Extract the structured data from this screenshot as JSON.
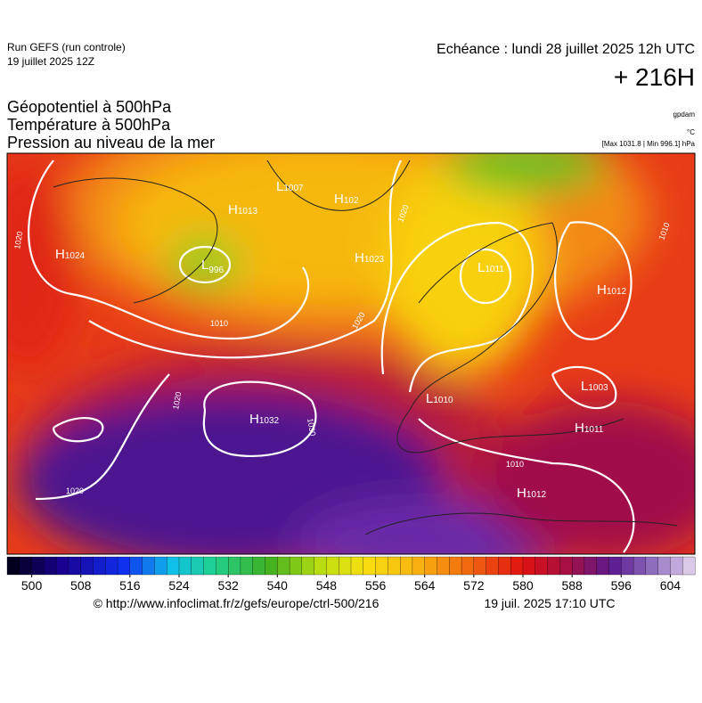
{
  "header": {
    "run": "Run GEFS (run controle)",
    "date": "19 juillet 2025 12Z",
    "echeance": "Echéance : lundi 28 juillet 2025 12h UTC",
    "lead": "+ 216H"
  },
  "titles": [
    "Géopotentiel à 500hPa",
    "Température à 500hPa",
    "Pression au niveau de la mer"
  ],
  "units": [
    "gpdam",
    "°C",
    "[Max 1031.8 | Min 996.1] hPa"
  ],
  "map": {
    "centers": [
      {
        "symbol": "H",
        "value": "1024"
      },
      {
        "symbol": "L",
        "value": "996"
      },
      {
        "symbol": "H",
        "value": "1013"
      },
      {
        "symbol": "L",
        "value": "1007"
      },
      {
        "symbol": "H",
        "value": "102"
      },
      {
        "symbol": "H",
        "value": "1023"
      },
      {
        "symbol": "L",
        "value": "1011"
      },
      {
        "symbol": "H",
        "value": "1012"
      },
      {
        "symbol": "L",
        "value": "1003"
      },
      {
        "symbol": "H",
        "value": "1011"
      },
      {
        "symbol": "H",
        "value": "1032"
      },
      {
        "symbol": "L",
        "value": "1010"
      },
      {
        "symbol": "H",
        "value": "1012"
      }
    ],
    "isobar_labels": [
      "1020",
      "1010",
      "1020",
      "1020",
      "1030",
      "1020",
      "1010",
      "1010",
      "1020"
    ]
  },
  "colorbar": {
    "ticks": [
      500,
      508,
      516,
      524,
      532,
      540,
      548,
      556,
      564,
      572,
      580,
      588,
      596,
      604
    ],
    "range": [
      496,
      608
    ]
  },
  "footer": {
    "source": "© http://www.infoclimat.fr/z/gefs/europe/ctrl-500/216",
    "issued": "19 juil. 2025 17:10 UTC"
  }
}
